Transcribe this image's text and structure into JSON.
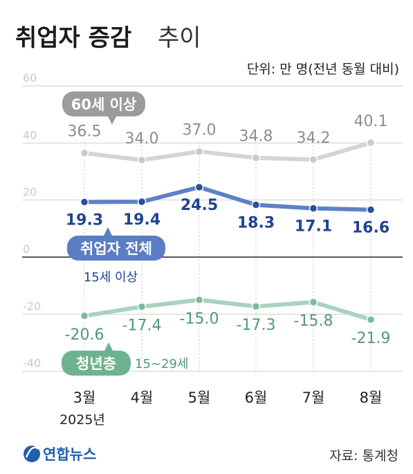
{
  "title": {
    "main": "취업자 증감",
    "sub": "추이"
  },
  "unit_label": "단위: 만 명(전년 동월 대비)",
  "source": "자료: 통계청",
  "logo_text": "연합뉴스",
  "chart_data": {
    "type": "line",
    "categories": [
      "3월",
      "4월",
      "5월",
      "6월",
      "7월",
      "8월"
    ],
    "year_label": "2025년",
    "y_ticks": [
      "60",
      "40",
      "20",
      "0",
      "-20",
      "-40"
    ],
    "ylim": [
      -40,
      60
    ],
    "grid": true,
    "series": [
      {
        "name": "60세 이상",
        "values": [
          36.5,
          34.0,
          37.0,
          34.8,
          34.2,
          40.1
        ],
        "labels": [
          "36.5",
          "34.0",
          "37.0",
          "34.8",
          "34.2",
          "40.1"
        ],
        "line_color": "#d4d4d4",
        "point_color": "#c9c9c9",
        "label_color": "#8d8d8d",
        "badge_color": "#9b9b9b"
      },
      {
        "name": "취업자 전체",
        "note": "15세 이상",
        "values": [
          19.3,
          19.4,
          24.5,
          18.3,
          17.1,
          16.6
        ],
        "labels": [
          "19.3",
          "19.4",
          "24.5",
          "18.3",
          "17.1",
          "16.6"
        ],
        "line_color": "#5d81c6",
        "point_color": "#2a4f9c",
        "label_color": "#1f4590",
        "badge_color": "#5a7dc4"
      },
      {
        "name": "청년층",
        "note": "15~29세",
        "values": [
          -20.6,
          -17.4,
          -15.0,
          -17.3,
          -15.8,
          -21.9
        ],
        "labels": [
          "-20.6",
          "-17.4",
          "-15.0",
          "-17.3",
          "-15.8",
          "-21.9"
        ],
        "line_color": "#a8d3bd",
        "point_color": "#7dbb9a",
        "label_color": "#4f9a74",
        "badge_color": "#6eb38f"
      }
    ]
  }
}
